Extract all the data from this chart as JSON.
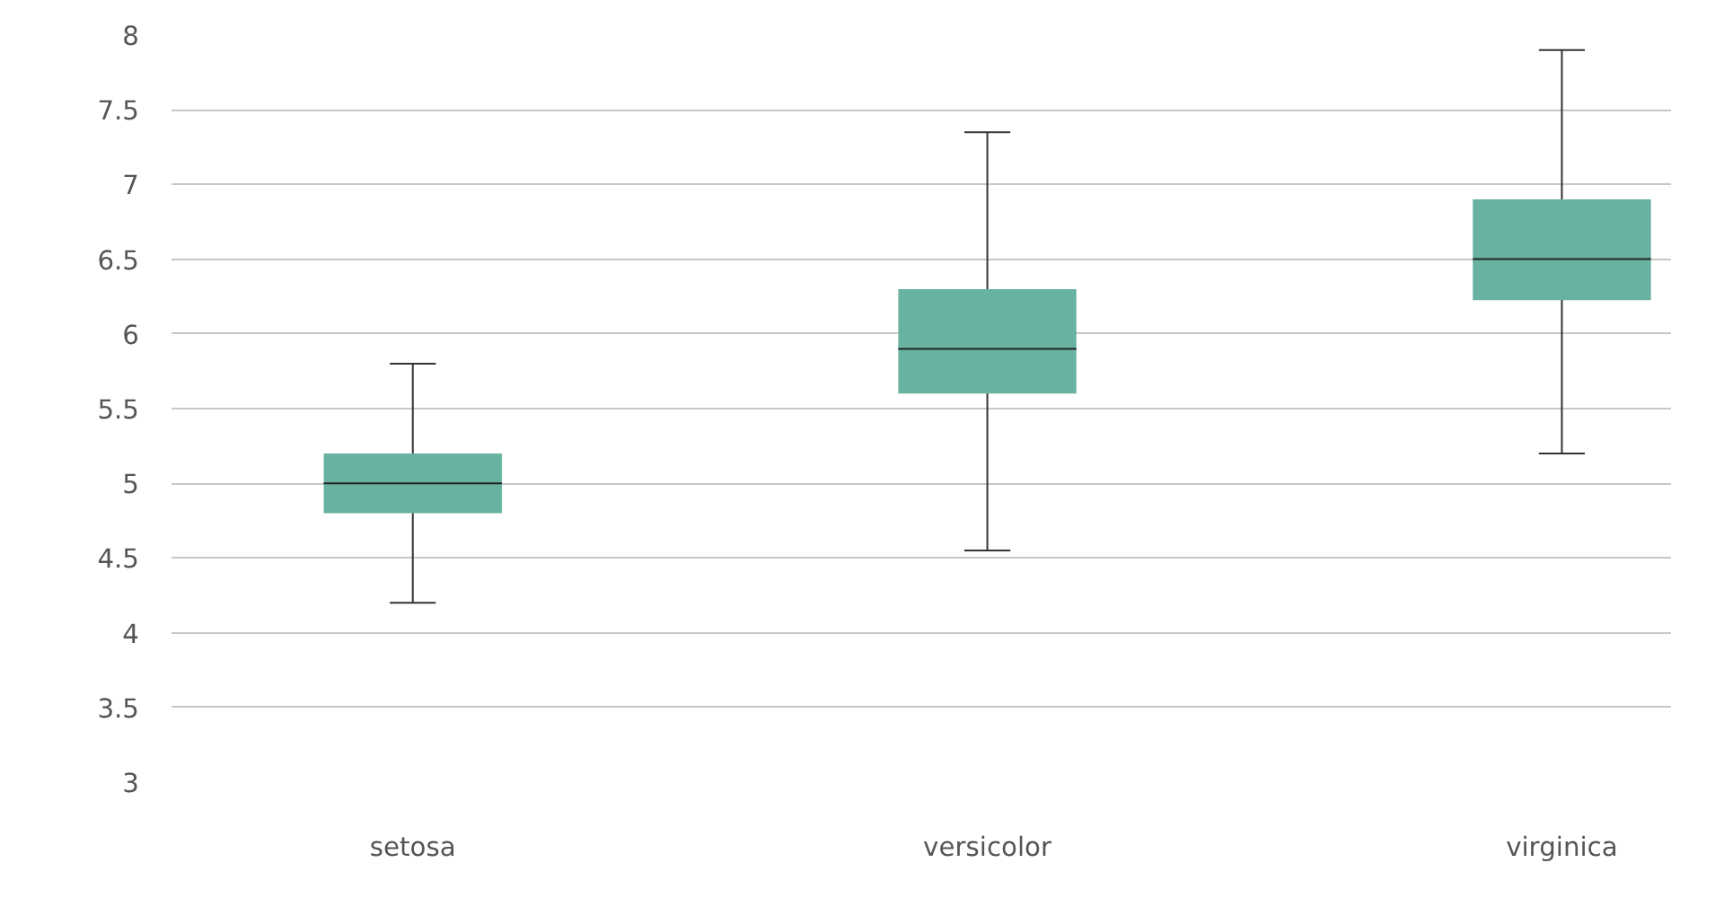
{
  "chart_data": {
    "type": "box",
    "categories": [
      "setosa",
      "versicolor",
      "virginica"
    ],
    "boxes": [
      {
        "low": 4.2,
        "q1": 4.8,
        "median": 5.0,
        "q3": 5.2,
        "high": 5.8
      },
      {
        "low": 4.55,
        "q1": 5.6,
        "median": 5.9,
        "q3": 6.3,
        "high": 7.35
      },
      {
        "low": 5.2,
        "q1": 6.225,
        "median": 6.5,
        "q3": 6.9,
        "high": 7.9
      }
    ],
    "color": "#67b2a0",
    "ylim": [
      3,
      8
    ],
    "yticks": [
      3,
      3.5,
      4,
      4.5,
      5,
      5.5,
      6,
      6.5,
      7,
      7.5,
      8
    ],
    "grid": "y"
  }
}
